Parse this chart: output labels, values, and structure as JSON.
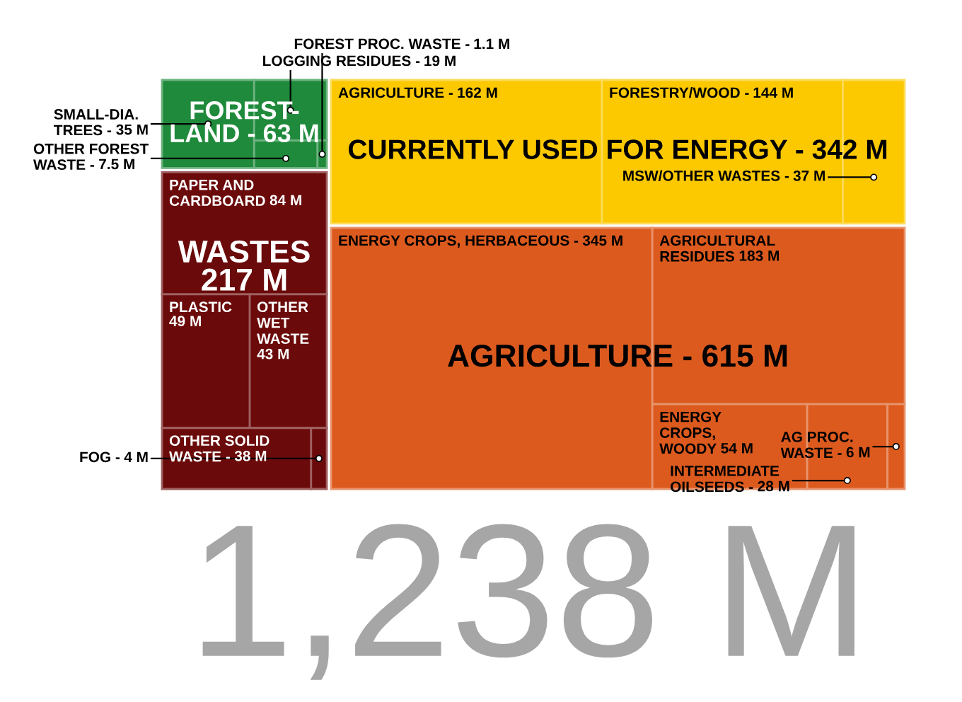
{
  "chart_data": {
    "type": "other",
    "categories": [
      "SMALL-DIA.\nTREES -",
      "LOGGING RESIDUES -",
      "OTHER FOREST\nWASTE -",
      "FOREST PROC. WASTE -",
      "PAPER AND\nCARDBOARD",
      "PLASTIC",
      "OTHER\nWET\nWASTE",
      "OTHER SOLID\nWASTE -",
      "FOG -",
      "AGRICULTURE -",
      "FORESTRY/WOOD -",
      "MSW/OTHER WASTES -",
      "ENERGY CROPS, HERBACEOUS -",
      "AGRICULTURAL\nRESIDUES",
      "ENERGY\nCROPS,\nWOODY",
      "INTERMEDIATE\nOILSEEDS -",
      "AG PROC.\nWASTE -"
    ],
    "values": [
      35,
      19,
      7.5,
      1.1,
      84,
      49,
      43,
      38,
      4,
      162,
      144,
      37,
      345,
      183,
      54,
      28,
      6
    ],
    "value_labels": [
      "35 M",
      "19 M",
      "7.5 M",
      "1.1 M",
      "84 M",
      "49 M",
      "43 M",
      "38 M",
      "4 M",
      "162 M",
      "144 M",
      "37 M",
      "345 M",
      "183 M",
      "54 M",
      "28 M",
      "6 M"
    ],
    "colors": [
      "#1f8a3b",
      "#1f8a3b",
      "#1f8a3b",
      "#1f8a3b",
      "#6b0a0a",
      "#6b0a0a",
      "#6b0a0a",
      "#6b0a0a",
      "#6b0a0a",
      "#fcc800",
      "#fcc800",
      "#fcc800",
      "#dc5a1e",
      "#dc5a1e",
      "#dc5a1e",
      "#dc5a1e",
      "#dc5a1e"
    ],
    "annotations": [
      "FOREST-\nLAND - 63 M",
      "WASTES\n217 M",
      "CURRENTLY USED FOR ENERGY - 342 M",
      "AGRICULTURE - 615 M",
      "1,238 M"
    ]
  }
}
